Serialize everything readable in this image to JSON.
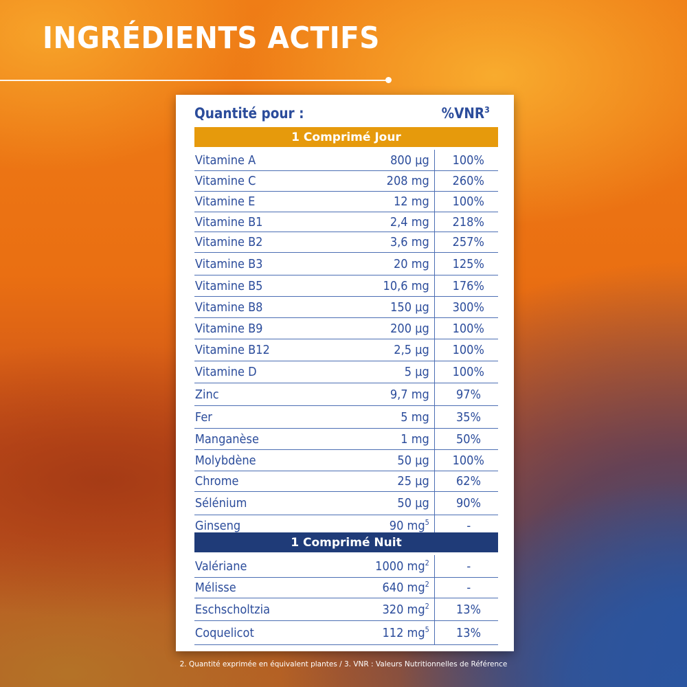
{
  "title": "INGRÉDIENTS ACTIFS",
  "colors": {
    "day_band": "#e69a0c",
    "night_band": "#1f3b78",
    "text_blue": "#2b4c9b",
    "rule_blue": "#4a6db3"
  },
  "card": {
    "header_left": "Quantité pour :",
    "header_right": "%VNR",
    "header_right_sup": "3",
    "day": {
      "label": "1 Comprimé Jour",
      "rows": [
        {
          "name": "Vitamine A",
          "qty": "800 µg",
          "sup": "",
          "vnr": "100%"
        },
        {
          "name": "Vitamine C",
          "qty": "208 mg",
          "sup": "",
          "vnr": "260%"
        },
        {
          "name": "Vitamine E",
          "qty": "12 mg",
          "sup": "",
          "vnr": "100%"
        },
        {
          "name": "Vitamine B1",
          "qty": "2,4 mg",
          "sup": "",
          "vnr": "218%"
        },
        {
          "name": "Vitamine B2",
          "qty": "3,6 mg",
          "sup": "",
          "vnr": "257%"
        },
        {
          "name": "Vitamine B3",
          "qty": "20 mg",
          "sup": "",
          "vnr": "125%"
        },
        {
          "name": "Vitamine B5",
          "qty": "10,6 mg",
          "sup": "",
          "vnr": "176%"
        },
        {
          "name": "Vitamine B8",
          "qty": "150 µg",
          "sup": "",
          "vnr": "300%"
        },
        {
          "name": "Vitamine B9",
          "qty": "200 µg",
          "sup": "",
          "vnr": "100%"
        },
        {
          "name": "Vitamine B12",
          "qty": "2,5 µg",
          "sup": "",
          "vnr": "100%"
        },
        {
          "name": "Vitamine D",
          "qty": "5 µg",
          "sup": "",
          "vnr": "100%"
        },
        {
          "name": "Zinc",
          "qty": "9,7 mg",
          "sup": "",
          "vnr": "97%"
        },
        {
          "name": "Fer",
          "qty": "5 mg",
          "sup": "",
          "vnr": "35%"
        },
        {
          "name": "Manganèse",
          "qty": "1 mg",
          "sup": "",
          "vnr": "50%"
        },
        {
          "name": "Molybdène",
          "qty": "50 µg",
          "sup": "",
          "vnr": "100%"
        },
        {
          "name": "Chrome",
          "qty": "25 µg",
          "sup": "",
          "vnr": "62%"
        },
        {
          "name": "Sélénium",
          "qty": "50 µg",
          "sup": "",
          "vnr": "90%"
        },
        {
          "name": "Ginseng",
          "qty": "90 mg",
          "sup": "5",
          "vnr": "-"
        }
      ]
    },
    "night": {
      "label": "1 Comprimé Nuit",
      "rows": [
        {
          "name": "Valériane",
          "qty": "1000 mg",
          "sup": "2",
          "vnr": "-"
        },
        {
          "name": "Mélisse",
          "qty": "640 mg",
          "sup": "2",
          "vnr": "-"
        },
        {
          "name": "Eschscholtzia",
          "qty": "320 mg",
          "sup": "2",
          "vnr": "13%"
        },
        {
          "name": "Coquelicot",
          "qty": "112 mg",
          "sup": "5",
          "vnr": "13%"
        }
      ]
    }
  },
  "footnote": "2. Quantité exprimée en équivalent plantes / 3. VNR : Valeurs Nutritionnelles de Référence"
}
